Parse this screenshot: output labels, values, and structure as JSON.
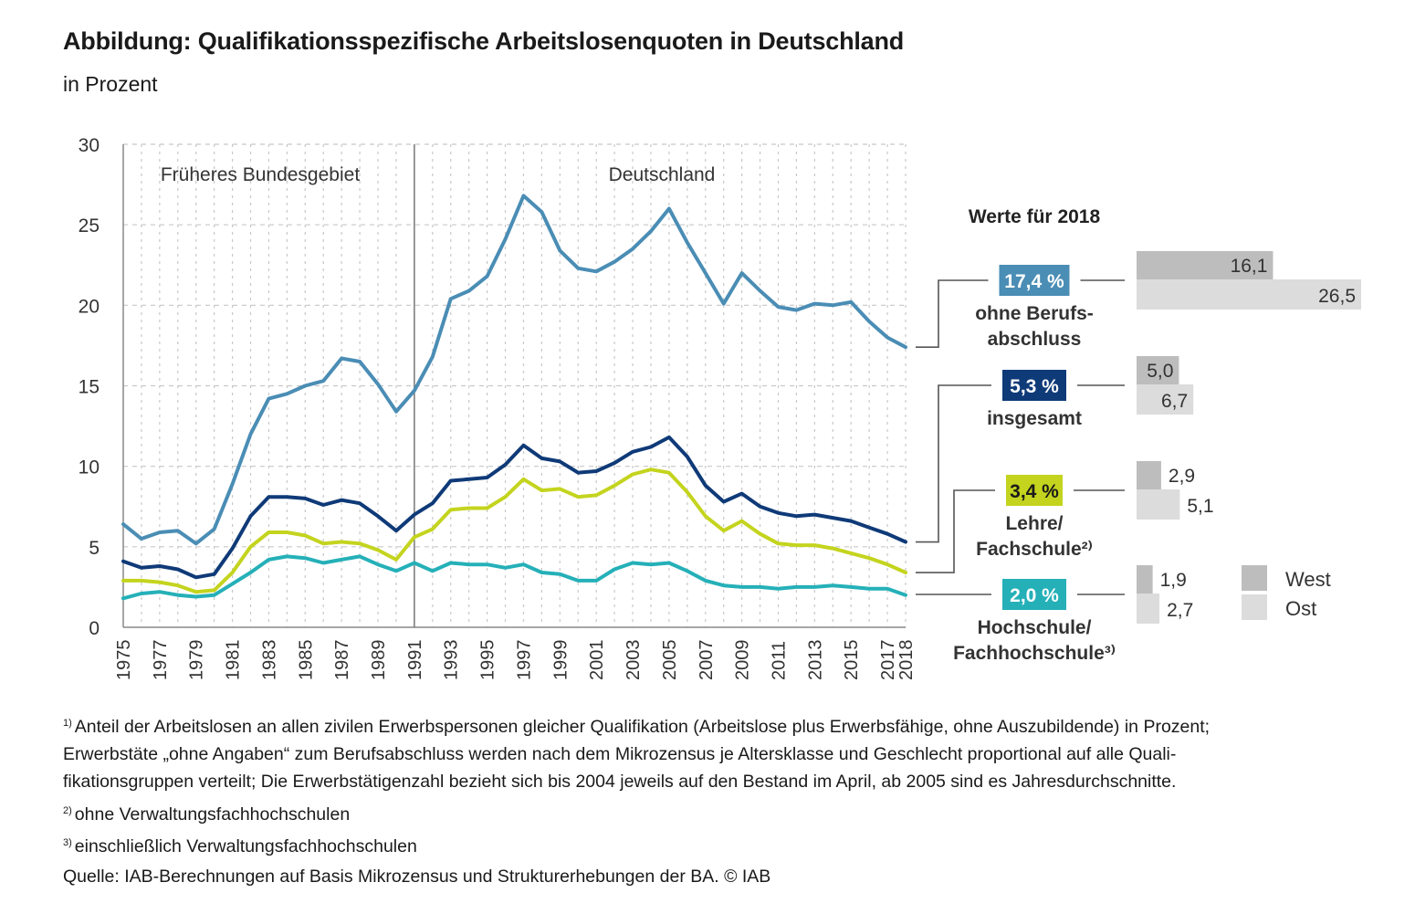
{
  "header": {
    "title": "Abbildung: Qualifikationsspezifische Arbeitslosenquoten in Deutschland",
    "subtitle": "in Prozent"
  },
  "chart_data": {
    "type": "line",
    "title": "Qualifikationsspezifische Arbeitslosenquoten in Deutschland",
    "subtitle": "in Prozent",
    "xlabel": "",
    "ylabel": "",
    "ylim": [
      0,
      30
    ],
    "yticks": [
      0,
      5,
      10,
      15,
      20,
      25,
      30
    ],
    "xlim": [
      1975,
      2018
    ],
    "xtick_labels": [
      "1975",
      "1977",
      "1979",
      "1981",
      "1983",
      "1985",
      "1987",
      "1989",
      "1991",
      "1993",
      "1995",
      "1997",
      "1999",
      "2001",
      "2003",
      "2005",
      "2007",
      "2009",
      "2011",
      "2013",
      "2015",
      "2017",
      "2018"
    ],
    "grid": true,
    "regions": [
      {
        "label": "Früheres Bundesgebiet",
        "from": 1975,
        "to": 1991
      },
      {
        "label": "Deutschland",
        "from": 1991,
        "to": 2018
      }
    ],
    "divider_year": 1991,
    "x": [
      1975,
      1976,
      1977,
      1978,
      1979,
      1980,
      1981,
      1982,
      1983,
      1984,
      1985,
      1986,
      1987,
      1988,
      1989,
      1990,
      1991,
      1992,
      1993,
      1994,
      1995,
      1996,
      1997,
      1998,
      1999,
      2000,
      2001,
      2002,
      2003,
      2004,
      2005,
      2006,
      2007,
      2008,
      2009,
      2010,
      2011,
      2012,
      2013,
      2014,
      2015,
      2016,
      2017,
      2018
    ],
    "series": [
      {
        "name": "ohne Berufsabschluss",
        "color": "#4a8db5",
        "values": [
          6.4,
          5.5,
          5.9,
          6.0,
          5.2,
          6.1,
          8.9,
          12.0,
          14.2,
          14.5,
          15.0,
          15.3,
          16.7,
          16.5,
          15.1,
          13.4,
          14.7,
          16.8,
          20.4,
          20.9,
          21.8,
          24.1,
          26.8,
          25.8,
          23.4,
          22.3,
          22.1,
          22.7,
          23.5,
          24.6,
          26.0,
          23.9,
          22.0,
          20.1,
          22.0,
          20.9,
          19.9,
          19.7,
          20.1,
          20.0,
          20.2,
          19.0,
          18.0,
          17.4
        ]
      },
      {
        "name": "insgesamt",
        "color": "#0f3a78",
        "values": [
          4.1,
          3.7,
          3.8,
          3.6,
          3.1,
          3.3,
          4.9,
          6.9,
          8.1,
          8.1,
          8.0,
          7.6,
          7.9,
          7.7,
          6.9,
          6.0,
          7.0,
          7.7,
          9.1,
          9.2,
          9.3,
          10.1,
          11.3,
          10.5,
          10.3,
          9.6,
          9.7,
          10.2,
          10.9,
          11.2,
          11.8,
          10.6,
          8.8,
          7.8,
          8.3,
          7.5,
          7.1,
          6.9,
          7.0,
          6.8,
          6.6,
          6.2,
          5.8,
          5.3
        ]
      },
      {
        "name": "Lehre/Fachschule",
        "color": "#c4d41e",
        "values": [
          2.9,
          2.9,
          2.8,
          2.6,
          2.2,
          2.3,
          3.4,
          5.0,
          5.9,
          5.9,
          5.7,
          5.2,
          5.3,
          5.2,
          4.8,
          4.2,
          5.6,
          6.1,
          7.3,
          7.4,
          7.4,
          8.1,
          9.2,
          8.5,
          8.6,
          8.1,
          8.2,
          8.8,
          9.5,
          9.8,
          9.6,
          8.4,
          6.9,
          6.0,
          6.6,
          5.8,
          5.2,
          5.1,
          5.1,
          4.9,
          4.6,
          4.3,
          3.9,
          3.4
        ]
      },
      {
        "name": "Hochschule/Fachhochschule",
        "color": "#25b0b8",
        "values": [
          1.8,
          2.1,
          2.2,
          2.0,
          1.9,
          2.0,
          2.7,
          3.4,
          4.2,
          4.4,
          4.3,
          4.0,
          4.2,
          4.4,
          3.9,
          3.5,
          4.0,
          3.5,
          4.0,
          3.9,
          3.9,
          3.7,
          3.9,
          3.4,
          3.3,
          2.9,
          2.9,
          3.6,
          4.0,
          3.9,
          4.0,
          3.5,
          2.9,
          2.6,
          2.5,
          2.5,
          2.4,
          2.5,
          2.5,
          2.6,
          2.5,
          2.4,
          2.4,
          2.0
        ]
      }
    ],
    "panel_2018": {
      "title": "Werte für 2018",
      "groups": [
        {
          "value_label": "17,4 %",
          "label_lines": [
            "ohne Berufs-",
            "abschluss"
          ],
          "badge_color": "#4a8db5",
          "badge_text_color": "#ffffff",
          "west": 16.1,
          "ost": 26.5,
          "west_label": "16,1",
          "ost_label": "26,5"
        },
        {
          "value_label": "5,3 %",
          "label_lines": [
            "insgesamt"
          ],
          "badge_color": "#0f3a78",
          "badge_text_color": "#ffffff",
          "west": 5.0,
          "ost": 6.7,
          "west_label": "5,0",
          "ost_label": "6,7"
        },
        {
          "value_label": "3,4 %",
          "label_lines": [
            "Lehre/",
            "Fachschule²⁾"
          ],
          "badge_color": "#c4d41e",
          "badge_text_color": "#1a1a1a",
          "west": 2.9,
          "ost": 5.1,
          "west_label": "2,9",
          "ost_label": "5,1"
        },
        {
          "value_label": "2,0 %",
          "label_lines": [
            "Hochschule/",
            "Fachhochschule³⁾"
          ],
          "badge_color": "#25b0b8",
          "badge_text_color": "#ffffff",
          "west": 1.9,
          "ost": 2.7,
          "west_label": "1,9",
          "ost_label": "2,7"
        }
      ],
      "legend": [
        {
          "label": "West",
          "color": "#bdbdbd"
        },
        {
          "label": "Ost",
          "color": "#dcdcdc"
        }
      ]
    }
  },
  "footnotes": [
    {
      "mark": "1)",
      "lines": [
        "Anteil der Arbeitslosen an allen zivilen Erwerbspersonen gleicher Qualifikation (Arbeitslose plus Erwerbsfähige, ohne Auszubildende) in Prozent;",
        "Erwerbstäte „ohne Angaben“ zum Berufsabschluss werden nach dem Mikrozensus je Altersklasse und Geschlecht proportional auf alle Quali-",
        "fikationsgruppen verteilt; Die Erwerbstätigenzahl bezieht sich bis 2004 jeweils auf den Bestand im April, ab 2005 sind es Jahresdurchschnitte."
      ]
    },
    {
      "mark": "2)",
      "lines": [
        "ohne Verwaltungsfachhochschulen"
      ]
    },
    {
      "mark": "3)",
      "lines": [
        "einschließlich Verwaltungsfachhochschulen"
      ]
    }
  ],
  "source": "Quelle: IAB-Berechnungen auf Basis Mikrozensus und Strukturerhebungen der BA. © IAB"
}
